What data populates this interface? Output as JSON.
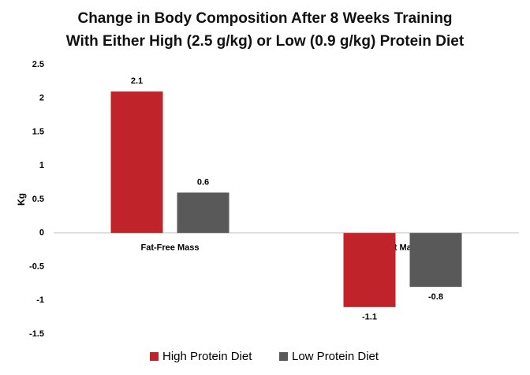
{
  "chart_data": {
    "type": "bar",
    "title": [
      "Change in Body Composition After 8 Weeks Training",
      "With Either High (2.5 g/kg) or Low (0.9 g/kg) Protein Diet"
    ],
    "y_label": "Kg",
    "categories": [
      "Fat-Free Mass",
      "Fat Mass"
    ],
    "series": [
      {
        "name": "High Protein Diet",
        "color": "#c0232a",
        "values": [
          2.1,
          -1.1
        ]
      },
      {
        "name": "Low Protein Diet",
        "color": "#595959",
        "values": [
          0.6,
          -0.8
        ]
      }
    ],
    "ylim": [
      -1.5,
      2.5
    ],
    "yticks": [
      -1.5,
      -1,
      -0.5,
      0,
      0.5,
      1,
      1.5,
      2,
      2.5
    ],
    "grid": false,
    "legend": "bottom"
  }
}
